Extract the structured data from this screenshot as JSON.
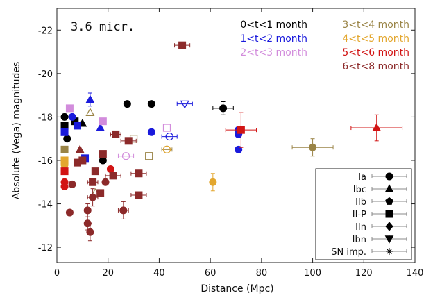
{
  "chart_data": {
    "type": "scatter",
    "title": "",
    "panel_label": "3.6 micr.",
    "xlabel": "Distance (Mpc)",
    "ylabel": "Absolute (Vega) magnitudes",
    "xlim": [
      0,
      140
    ],
    "ylim": [
      -11.3,
      -23
    ],
    "x_ticks": [
      0,
      20,
      40,
      60,
      80,
      100,
      120,
      140
    ],
    "y_ticks": [
      -12,
      -14,
      -16,
      -18,
      -20,
      -22
    ],
    "y_inverted": true,
    "time_legend": [
      {
        "label": "0<t<1 month",
        "color": "#000000"
      },
      {
        "label": "1<t<2 month",
        "color": "#1a1adc"
      },
      {
        "label": "2<t<3 month",
        "color": "#d28cdc"
      },
      {
        "label": "3<t<4 month",
        "color": "#9a8446"
      },
      {
        "label": "4<t<5 month",
        "color": "#e3a72f"
      },
      {
        "label": "5<t<6 month",
        "color": "#d21414"
      },
      {
        "label": "6<t<8 month",
        "color": "#8c2a2a"
      }
    ],
    "type_legend": [
      {
        "label": "Ia",
        "marker": "circle"
      },
      {
        "label": "Ibc",
        "marker": "triangle"
      },
      {
        "label": "IIb",
        "marker": "pentagon"
      },
      {
        "label": "II-P",
        "marker": "square"
      },
      {
        "label": "IIn",
        "marker": "diamond"
      },
      {
        "label": "Ibn",
        "marker": "triangle-down"
      },
      {
        "label": "SN imp.",
        "marker": "star"
      }
    ],
    "points": [
      {
        "x": 27.5,
        "y": -18.6,
        "marker": "circle",
        "color": "#000000"
      },
      {
        "x": 37,
        "y": -18.6,
        "marker": "circle",
        "color": "#000000"
      },
      {
        "x": 65,
        "y": -18.4,
        "marker": "circle",
        "color": "#000000",
        "xerr": 4,
        "yerr": 0.3
      },
      {
        "x": 3,
        "y": -18.0,
        "marker": "circle",
        "color": "#000000"
      },
      {
        "x": 3,
        "y": -17.6,
        "marker": "square",
        "color": "#000000"
      },
      {
        "x": 10,
        "y": -17.7,
        "marker": "triangle",
        "color": "#000000"
      },
      {
        "x": 7,
        "y": -17.8,
        "marker": "square",
        "color": "#000000"
      },
      {
        "x": 4,
        "y": -17.0,
        "marker": "circle",
        "color": "#000000"
      },
      {
        "x": 18,
        "y": -16.0,
        "marker": "circle",
        "color": "#000000"
      },
      {
        "x": 13,
        "y": -18.8,
        "marker": "triangle",
        "color": "#1a1adc",
        "yerr": 0.3
      },
      {
        "x": 3,
        "y": -17.3,
        "marker": "square",
        "color": "#1a1adc"
      },
      {
        "x": 6,
        "y": -18.0,
        "marker": "circle",
        "color": "#1a1adc"
      },
      {
        "x": 8,
        "y": -17.6,
        "marker": "square",
        "color": "#1a1adc"
      },
      {
        "x": 17,
        "y": -17.5,
        "marker": "triangle",
        "color": "#1a1adc"
      },
      {
        "x": 11,
        "y": -16.1,
        "marker": "square",
        "color": "#1a1adc"
      },
      {
        "x": 37,
        "y": -17.3,
        "marker": "circle",
        "color": "#1a1adc"
      },
      {
        "x": 71,
        "y": -17.4,
        "marker": "circle",
        "color": "#1a1adc"
      },
      {
        "x": 71,
        "y": -17.2,
        "marker": "circle",
        "color": "#1a1adc"
      },
      {
        "x": 71,
        "y": -16.5,
        "marker": "circle",
        "color": "#1a1adc"
      },
      {
        "x": 50,
        "y": -18.6,
        "marker": "triangle-down",
        "color": "#1a1adc",
        "open": true,
        "xerr": 3
      },
      {
        "x": 44,
        "y": -17.1,
        "marker": "circle",
        "color": "#1a1adc",
        "open": true,
        "xerr": 3
      },
      {
        "x": 5,
        "y": -18.4,
        "marker": "square",
        "color": "#d28cdc"
      },
      {
        "x": 18,
        "y": -17.8,
        "marker": "square",
        "color": "#d28cdc"
      },
      {
        "x": 27,
        "y": -16.2,
        "marker": "circle",
        "color": "#d28cdc",
        "open": true,
        "xerr": 3
      },
      {
        "x": 43,
        "y": -17.5,
        "marker": "square",
        "color": "#d28cdc",
        "open": true
      },
      {
        "x": 13,
        "y": -18.2,
        "marker": "triangle",
        "color": "#9a8446",
        "open": true
      },
      {
        "x": 43,
        "y": -16.5,
        "marker": "circle",
        "color": "#9a8446",
        "open": true,
        "xerr": 2
      },
      {
        "x": 100,
        "y": -16.6,
        "marker": "circle",
        "color": "#9a8446",
        "xerr": 8,
        "yerr": 0.4
      },
      {
        "x": 3,
        "y": -16.5,
        "marker": "square",
        "color": "#9a8446"
      },
      {
        "x": 30,
        "y": -17.0,
        "marker": "square",
        "color": "#9a8446",
        "open": true
      },
      {
        "x": 36,
        "y": -16.2,
        "marker": "square",
        "color": "#9a8446",
        "open": true
      },
      {
        "x": 15,
        "y": -14.5,
        "marker": "triangle",
        "color": "#9a8446",
        "open": true
      },
      {
        "x": 3,
        "y": -16.0,
        "marker": "square",
        "color": "#e3a72f"
      },
      {
        "x": 61,
        "y": -15.0,
        "marker": "circle",
        "color": "#e3a72f",
        "yerr": 0.4
      },
      {
        "x": 43,
        "y": -16.5,
        "marker": "circle",
        "color": "#e3a72f",
        "open": true
      },
      {
        "x": 3,
        "y": -15.8,
        "marker": "circle",
        "color": "#e3a72f"
      },
      {
        "x": 3,
        "y": -15.5,
        "marker": "square",
        "color": "#d21414"
      },
      {
        "x": 3,
        "y": -15.0,
        "marker": "circle",
        "color": "#d21414"
      },
      {
        "x": 3,
        "y": -14.8,
        "marker": "circle",
        "color": "#d21414"
      },
      {
        "x": 72,
        "y": -17.4,
        "marker": "square",
        "color": "#d21414",
        "xerr": 6,
        "yerr": 0.8
      },
      {
        "x": 125,
        "y": -17.5,
        "marker": "triangle",
        "color": "#d21414",
        "xerr": 10,
        "yerr": 0.6
      },
      {
        "x": 21,
        "y": -15.6,
        "marker": "circle",
        "color": "#d21414"
      },
      {
        "x": 49,
        "y": -21.3,
        "marker": "square",
        "color": "#8c2a2a",
        "xerr": 3
      },
      {
        "x": 5,
        "y": -13.6,
        "marker": "circle",
        "color": "#8c2a2a"
      },
      {
        "x": 6,
        "y": -14.9,
        "marker": "circle",
        "color": "#8c2a2a"
      },
      {
        "x": 12,
        "y": -13.7,
        "marker": "circle",
        "color": "#8c2a2a",
        "yerr": 0.3
      },
      {
        "x": 12,
        "y": -13.1,
        "marker": "circle",
        "color": "#8c2a2a",
        "yerr": 0.3
      },
      {
        "x": 13,
        "y": -12.7,
        "marker": "circle",
        "color": "#8c2a2a",
        "yerr": 0.4
      },
      {
        "x": 14,
        "y": -14.3,
        "marker": "circle",
        "color": "#8c2a2a",
        "xerr": 2,
        "yerr": 0.4
      },
      {
        "x": 14,
        "y": -15.0,
        "marker": "square",
        "color": "#8c2a2a",
        "xerr": 2
      },
      {
        "x": 15,
        "y": -15.5,
        "marker": "square",
        "color": "#8c2a2a"
      },
      {
        "x": 17,
        "y": -14.5,
        "marker": "square",
        "color": "#8c2a2a"
      },
      {
        "x": 18,
        "y": -16.3,
        "marker": "square",
        "color": "#8c2a2a"
      },
      {
        "x": 22,
        "y": -15.3,
        "marker": "square",
        "color": "#8c2a2a",
        "xerr": 3
      },
      {
        "x": 23,
        "y": -17.2,
        "marker": "square",
        "color": "#8c2a2a",
        "xerr": 2
      },
      {
        "x": 26,
        "y": -13.7,
        "marker": "circle",
        "color": "#8c2a2a",
        "xerr": 2,
        "yerr": 0.4
      },
      {
        "x": 28,
        "y": -16.9,
        "marker": "square",
        "color": "#8c2a2a",
        "xerr": 3
      },
      {
        "x": 32,
        "y": -15.4,
        "marker": "square",
        "color": "#8c2a2a",
        "xerr": 3
      },
      {
        "x": 32,
        "y": -14.4,
        "marker": "square",
        "color": "#8c2a2a",
        "xerr": 3
      },
      {
        "x": 8,
        "y": -15.9,
        "marker": "square",
        "color": "#8c2a2a"
      },
      {
        "x": 10,
        "y": -16.0,
        "marker": "square",
        "color": "#8c2a2a"
      },
      {
        "x": 19,
        "y": -15.0,
        "marker": "circle",
        "color": "#8c2a2a"
      },
      {
        "x": 9,
        "y": -16.5,
        "marker": "triangle",
        "color": "#8c2a2a"
      }
    ]
  }
}
